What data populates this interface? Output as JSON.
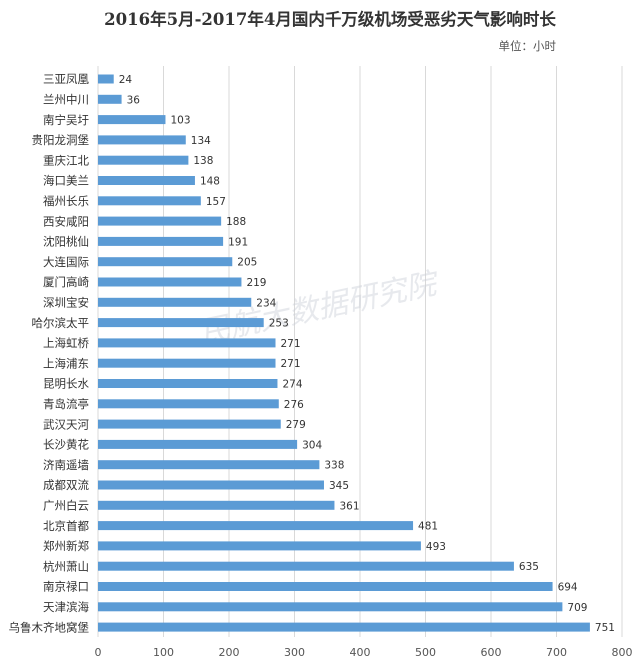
{
  "chart_data": {
    "type": "bar",
    "orientation": "horizontal",
    "title": "2016年5月-2017年4月国内千万级机场受恶劣天气影响时长",
    "unit_label": "单位：小时",
    "categories": [
      "三亚凤凰",
      "兰州中川",
      "南宁吴圩",
      "贵阳龙洞堡",
      "重庆江北",
      "海口美兰",
      "福州长乐",
      "西安咸阳",
      "沈阳桃仙",
      "大连国际",
      "厦门高崎",
      "深圳宝安",
      "哈尔滨太平",
      "上海虹桥",
      "上海浦东",
      "昆明长水",
      "青岛流亭",
      "武汉天河",
      "长沙黄花",
      "济南遥墙",
      "成都双流",
      "广州白云",
      "北京首都",
      "郑州新郑",
      "杭州萧山",
      "南京禄口",
      "天津滨海",
      "乌鲁木齐地窝堡"
    ],
    "values": [
      24,
      36,
      103,
      134,
      138,
      148,
      157,
      188,
      191,
      205,
      219,
      234,
      253,
      271,
      271,
      274,
      276,
      279,
      304,
      338,
      345,
      361,
      481,
      493,
      635,
      694,
      709,
      751
    ],
    "x_ticks": [
      "0",
      "100",
      "200",
      "300",
      "400",
      "500",
      "600",
      "700",
      "800"
    ],
    "xlim": [
      0,
      800
    ],
    "grid": true,
    "bar_color": "#5b9bd5",
    "watermark": "民航大数据研究院"
  }
}
